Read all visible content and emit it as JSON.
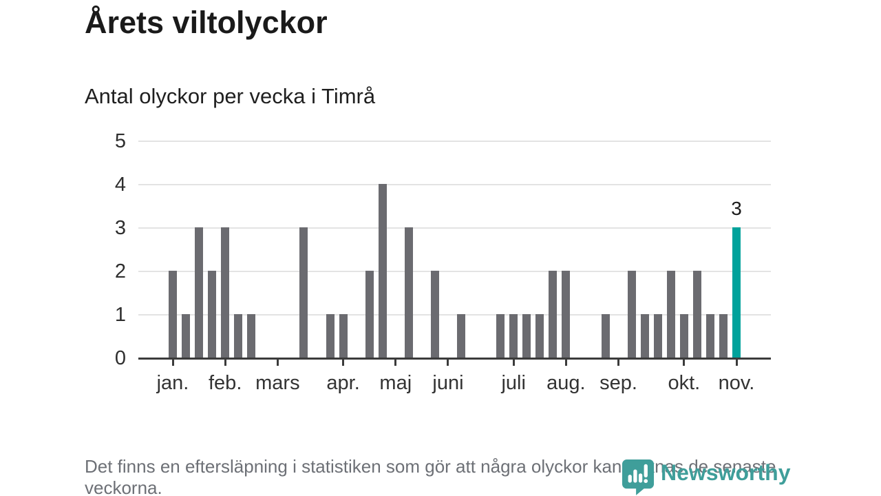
{
  "header": {
    "title": "Årets viltolyckor",
    "subtitle": "Antal olyckor per vecka i Timrå"
  },
  "chart_data": {
    "type": "bar",
    "title": "Årets viltolyckor",
    "subtitle": "Antal olyckor per vecka i Timrå",
    "x_unit": "vecka",
    "values": [
      2,
      1,
      3,
      2,
      3,
      1,
      1,
      0,
      0,
      0,
      3,
      0,
      1,
      1,
      0,
      2,
      4,
      0,
      3,
      0,
      2,
      0,
      1,
      0,
      0,
      1,
      1,
      1,
      1,
      2,
      2,
      0,
      0,
      1,
      0,
      2,
      1,
      1,
      2,
      1,
      2,
      1,
      1,
      3
    ],
    "month_ticks": [
      {
        "label": "jan.",
        "week": 0
      },
      {
        "label": "feb.",
        "week": 4
      },
      {
        "label": "mars",
        "week": 8
      },
      {
        "label": "apr.",
        "week": 13
      },
      {
        "label": "maj",
        "week": 17
      },
      {
        "label": "juni",
        "week": 21
      },
      {
        "label": "juli",
        "week": 26
      },
      {
        "label": "aug.",
        "week": 30
      },
      {
        "label": "sep.",
        "week": 34
      },
      {
        "label": "okt.",
        "week": 39
      },
      {
        "label": "nov.",
        "week": 43
      }
    ],
    "y_ticks": [
      0,
      1,
      2,
      3,
      4,
      5
    ],
    "ylim": [
      0,
      5
    ],
    "grid": true,
    "legend": "none",
    "highlight": {
      "index": 43,
      "value": 3,
      "label": "3"
    }
  },
  "colors": {
    "bar": "#6b6b70",
    "highlight": "#00a29b",
    "grid": "#e3e3e3",
    "axis": "#3b3b3b",
    "tick_label": "#333333",
    "brand": "#3f9e9a"
  },
  "footer": {
    "note": "Det finns en eftersläpning i statistiken som gör att några olyckor kan saknas de senaste veckorna.",
    "brand": "Newsworthy"
  }
}
